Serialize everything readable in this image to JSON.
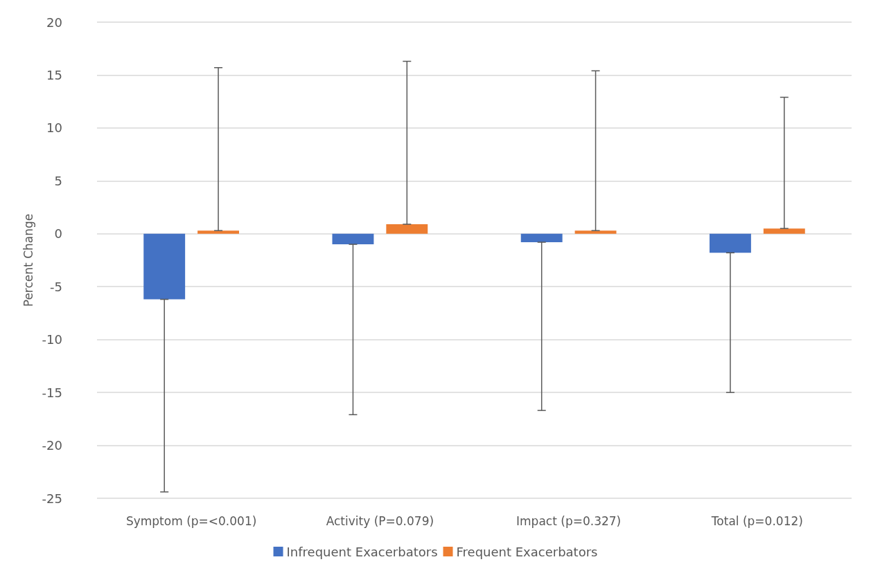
{
  "chart_data": {
    "type": "bar",
    "ylabel": "Percent Change",
    "categories": [
      "Symptom (p=<0.001)",
      "Activity (P=0.079)",
      "Impact (p=0.327)",
      "Total (p=0.012)"
    ],
    "series": [
      {
        "name": "Infrequent Exacerbators",
        "color": "#4472c4",
        "values": [
          -6.2,
          -1.0,
          -0.8,
          -1.8
        ],
        "errors": [
          [
            -24.4,
            -6.2
          ],
          [
            -17.1,
            -1.0
          ],
          [
            -16.7,
            -0.8
          ],
          [
            -15.0,
            -1.8
          ]
        ]
      },
      {
        "name": "Frequent Exacerbators",
        "color": "#ed7d31",
        "values": [
          0.3,
          0.9,
          0.3,
          0.5
        ],
        "errors": [
          [
            0.3,
            15.7
          ],
          [
            0.9,
            16.3
          ],
          [
            0.3,
            15.4
          ],
          [
            0.5,
            12.9
          ]
        ]
      }
    ],
    "ylim": [
      -25,
      20
    ],
    "yticks": [
      -25,
      -20,
      -15,
      -10,
      -5,
      0,
      5,
      10,
      15,
      20
    ],
    "grid": "y",
    "legend": "bottom"
  }
}
